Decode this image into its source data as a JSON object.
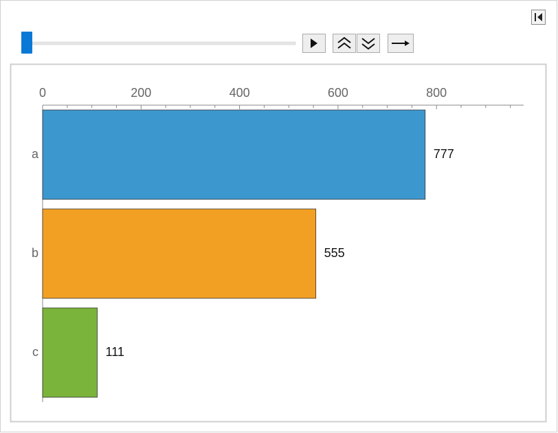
{
  "chart_data": {
    "type": "bar",
    "orientation": "horizontal",
    "categories": [
      "a",
      "b",
      "c"
    ],
    "values": [
      777,
      555,
      111
    ],
    "colors": [
      "#3d97cf",
      "#f2a024",
      "#7ab43a"
    ],
    "xlim": [
      0,
      977
    ],
    "xticks": [
      0,
      200,
      400,
      600,
      800
    ],
    "xminorticks": [
      50,
      100,
      150,
      250,
      300,
      350,
      450,
      500,
      550,
      650,
      700,
      750,
      850,
      900,
      950
    ],
    "xaxis_position": "top"
  }
}
